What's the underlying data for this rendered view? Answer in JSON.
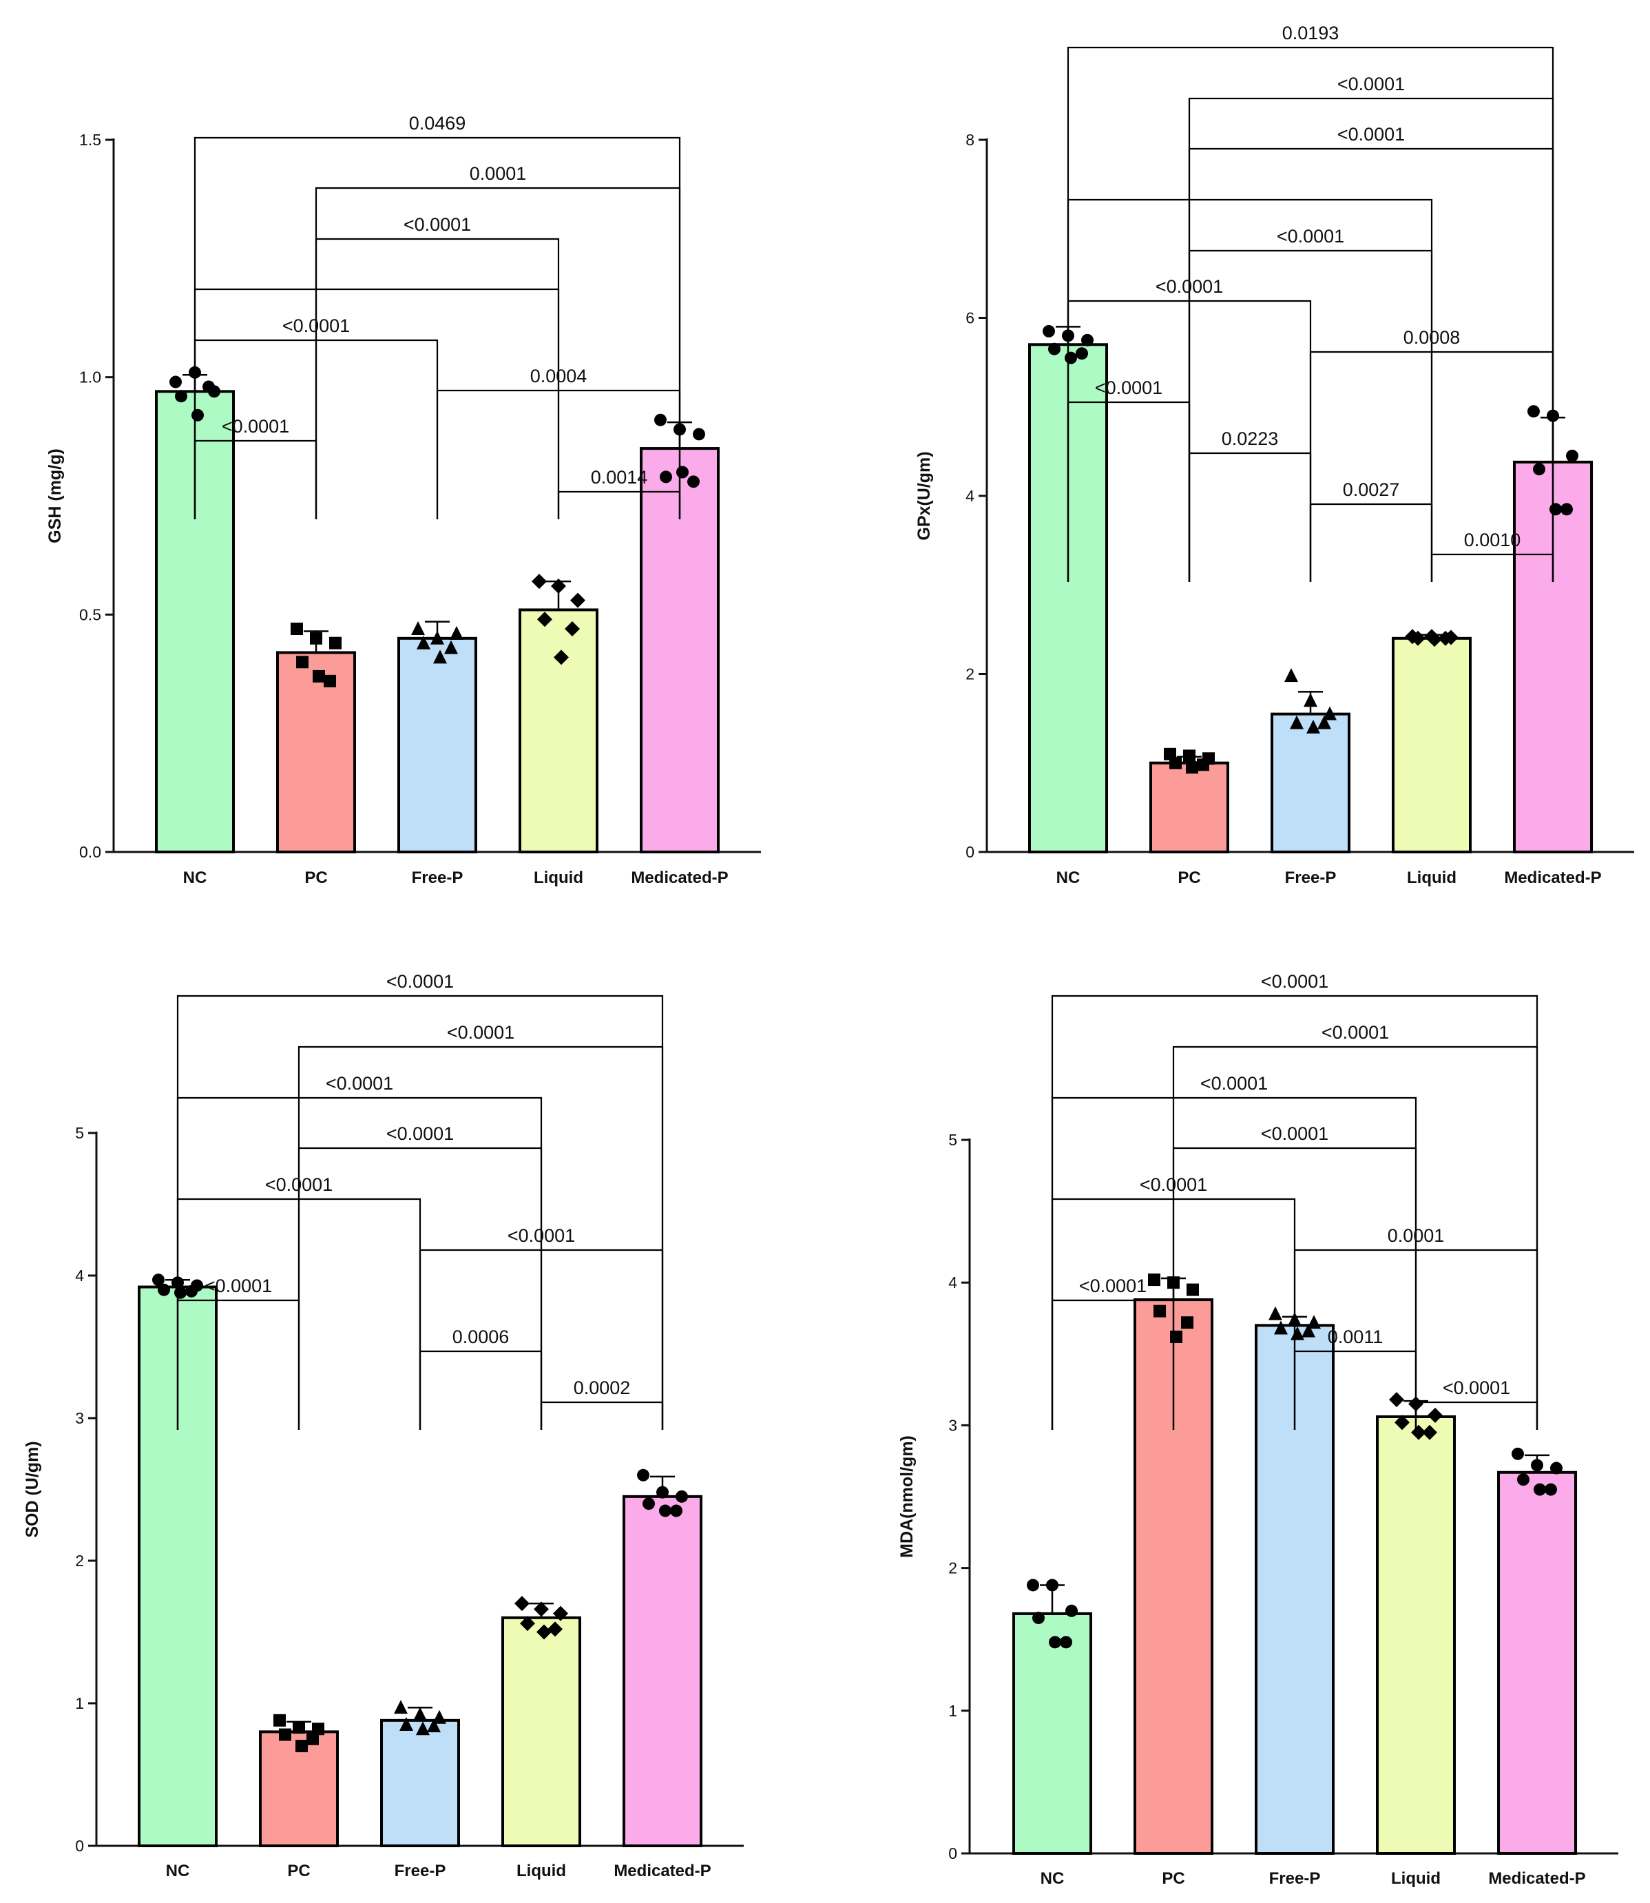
{
  "figure": {
    "colors": {
      "NC": "#adfac5",
      "PC": "#fb9c98",
      "Free-P": "#bfdff9",
      "Liquid": "#eefbb4",
      "Medicated-P": "#fbaaea",
      "axis": "#111111"
    }
  },
  "chart_data": [
    {
      "type": "bar",
      "ylabel": "GSH (mg/g)",
      "categories": [
        "NC",
        "PC",
        "Free-P",
        "Liquid",
        "Medicated-P"
      ],
      "values": [
        0.97,
        0.42,
        0.45,
        0.51,
        0.85
      ],
      "errors": [
        0.035,
        0.045,
        0.035,
        0.06,
        0.055
      ],
      "points": [
        [
          0.99,
          1.01,
          0.97,
          0.96,
          0.98,
          0.92
        ],
        [
          0.47,
          0.45,
          0.44,
          0.4,
          0.36,
          0.37
        ],
        [
          0.47,
          0.45,
          0.46,
          0.44,
          0.43,
          0.41
        ],
        [
          0.57,
          0.56,
          0.53,
          0.49,
          0.47,
          0.41
        ],
        [
          0.91,
          0.89,
          0.88,
          0.79,
          0.78,
          0.8
        ]
      ],
      "markers": [
        "circle",
        "square",
        "triangle",
        "diamond",
        "circle"
      ],
      "ylim": [
        0,
        1.5
      ],
      "yticks": [
        0.0,
        0.5,
        1.0,
        1.5
      ],
      "ytick_labels": [
        "0.0",
        "0.5",
        "1.0",
        "1.5"
      ],
      "brackets": [
        {
          "from": 0,
          "to": 4,
          "label": "0.0469"
        },
        {
          "from": 1,
          "to": 4,
          "label": "0.0001"
        },
        {
          "from": 1,
          "to": 3,
          "label": "<0.0001"
        },
        {
          "from": 0,
          "to": 3,
          "label": ""
        },
        {
          "from": 0,
          "to": 2,
          "label": "<0.0001"
        },
        {
          "from": 2,
          "to": 4,
          "label": "0.0004"
        },
        {
          "from": 0,
          "to": 1,
          "label": "<0.0001"
        },
        {
          "from": 3,
          "to": 4,
          "label": "0.0014"
        }
      ]
    },
    {
      "type": "bar",
      "ylabel": "GPx(U/gm)",
      "categories": [
        "NC",
        "PC",
        "Free-P",
        "Liquid",
        "Medicated-P"
      ],
      "values": [
        5.7,
        1.0,
        1.55,
        2.4,
        4.38
      ],
      "errors": [
        0.2,
        0.07,
        0.25,
        0.04,
        0.5
      ],
      "points": [
        [
          5.85,
          5.8,
          5.75,
          5.65,
          5.6,
          5.55
        ],
        [
          1.1,
          1.08,
          1.05,
          1.0,
          0.98,
          0.95
        ],
        [
          1.98,
          1.7,
          1.55,
          1.45,
          1.45,
          1.4
        ],
        [
          2.42,
          2.42,
          2.41,
          2.4,
          2.4,
          2.39
        ],
        [
          4.95,
          4.9,
          4.45,
          4.3,
          3.85,
          3.85
        ]
      ],
      "markers": [
        "circle",
        "square",
        "triangle",
        "diamond",
        "circle"
      ],
      "ylim": [
        0,
        8
      ],
      "yticks": [
        0,
        2,
        4,
        6,
        8
      ],
      "ytick_labels": [
        "0",
        "2",
        "4",
        "6",
        "8"
      ],
      "brackets": [
        {
          "from": 0,
          "to": 4,
          "label": "0.0193"
        },
        {
          "from": 1,
          "to": 4,
          "label": "<0.0001"
        },
        {
          "from": 1,
          "to": 4,
          "label": "<0.0001"
        },
        {
          "from": 0,
          "to": 3,
          "label": ""
        },
        {
          "from": 1,
          "to": 3,
          "label": "<0.0001"
        },
        {
          "from": 0,
          "to": 2,
          "label": "<0.0001"
        },
        {
          "from": 2,
          "to": 4,
          "label": "0.0008"
        },
        {
          "from": 0,
          "to": 1,
          "label": "<0.0001"
        },
        {
          "from": 1,
          "to": 2,
          "label": "0.0223"
        },
        {
          "from": 2,
          "to": 3,
          "label": "0.0027"
        },
        {
          "from": 3,
          "to": 4,
          "label": "0.0010"
        }
      ]
    },
    {
      "type": "bar",
      "ylabel": "SOD (U/gm)",
      "categories": [
        "NC",
        "PC",
        "Free-P",
        "Liquid",
        "Medicated-P"
      ],
      "values": [
        3.92,
        0.8,
        0.88,
        1.6,
        2.45
      ],
      "errors": [
        0.05,
        0.07,
        0.09,
        0.1,
        0.14
      ],
      "points": [
        [
          3.97,
          3.95,
          3.93,
          3.9,
          3.89,
          3.88
        ],
        [
          0.88,
          0.83,
          0.82,
          0.78,
          0.75,
          0.7
        ],
        [
          0.97,
          0.92,
          0.9,
          0.85,
          0.84,
          0.82
        ],
        [
          1.7,
          1.66,
          1.63,
          1.56,
          1.52,
          1.5
        ],
        [
          2.6,
          2.48,
          2.45,
          2.4,
          2.35,
          2.35
        ]
      ],
      "markers": [
        "circle",
        "square",
        "triangle",
        "diamond",
        "circle"
      ],
      "ylim": [
        0,
        5
      ],
      "yticks": [
        0,
        1,
        2,
        3,
        4,
        5
      ],
      "ytick_labels": [
        "0",
        "1",
        "2",
        "3",
        "4",
        "5"
      ],
      "brackets": [
        {
          "from": 0,
          "to": 4,
          "label": "<0.0001"
        },
        {
          "from": 1,
          "to": 4,
          "label": "<0.0001"
        },
        {
          "from": 0,
          "to": 3,
          "label": "<0.0001"
        },
        {
          "from": 1,
          "to": 3,
          "label": "<0.0001"
        },
        {
          "from": 0,
          "to": 2,
          "label": "<0.0001"
        },
        {
          "from": 2,
          "to": 4,
          "label": "<0.0001"
        },
        {
          "from": 0,
          "to": 1,
          "label": "<0.0001"
        },
        {
          "from": 2,
          "to": 3,
          "label": "0.0006"
        },
        {
          "from": 3,
          "to": 4,
          "label": "0.0002"
        }
      ]
    },
    {
      "type": "bar",
      "ylabel": "MDA(nmol/gm)",
      "categories": [
        "NC",
        "PC",
        "Free-P",
        "Liquid",
        "Medicated-P"
      ],
      "values": [
        1.68,
        3.88,
        3.7,
        3.06,
        2.67
      ],
      "errors": [
        0.2,
        0.15,
        0.06,
        0.11,
        0.12
      ],
      "points": [
        [
          1.88,
          1.88,
          1.7,
          1.65,
          1.48,
          1.48
        ],
        [
          4.02,
          4.0,
          3.95,
          3.8,
          3.72,
          3.62
        ],
        [
          3.78,
          3.74,
          3.72,
          3.68,
          3.66,
          3.64
        ],
        [
          3.18,
          3.15,
          3.07,
          3.02,
          2.95,
          2.95
        ],
        [
          2.8,
          2.72,
          2.7,
          2.62,
          2.55,
          2.55
        ]
      ],
      "markers": [
        "circle",
        "square",
        "triangle",
        "diamond",
        "circle"
      ],
      "ylim": [
        0,
        5
      ],
      "yticks": [
        0,
        1,
        2,
        3,
        4,
        5
      ],
      "ytick_labels": [
        "0",
        "1",
        "2",
        "3",
        "4",
        "5"
      ],
      "brackets": [
        {
          "from": 0,
          "to": 4,
          "label": "<0.0001"
        },
        {
          "from": 1,
          "to": 4,
          "label": "<0.0001"
        },
        {
          "from": 0,
          "to": 3,
          "label": "<0.0001"
        },
        {
          "from": 1,
          "to": 3,
          "label": "<0.0001"
        },
        {
          "from": 0,
          "to": 2,
          "label": "<0.0001"
        },
        {
          "from": 2,
          "to": 4,
          "label": "0.0001"
        },
        {
          "from": 0,
          "to": 1,
          "label": "<0.0001"
        },
        {
          "from": 2,
          "to": 3,
          "label": "0.0011"
        },
        {
          "from": 3,
          "to": 4,
          "label": "<0.0001"
        }
      ]
    }
  ]
}
